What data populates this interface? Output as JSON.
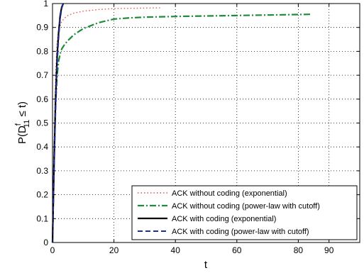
{
  "chart_data": {
    "type": "line",
    "xlabel": "t",
    "ylabel_main": "P(D",
    "ylabel_sup": "f",
    "ylabel_sub": "11",
    "ylabel_tail": " ≤ t)",
    "xlim": [
      0,
      100
    ],
    "ylim": [
      0,
      1
    ],
    "xticks": [
      0,
      20,
      40,
      60,
      80,
      90
    ],
    "yticks": [
      0,
      0.1,
      0.2,
      0.3,
      0.4,
      0.5,
      0.6,
      0.7,
      0.8,
      0.9,
      1
    ],
    "grid": true,
    "legend_position": "bottom-right",
    "series": [
      {
        "name": "ACK without coding (exponential)",
        "color": "#e0554a",
        "style": "dotted",
        "x": [
          0,
          0.5,
          1,
          1.5,
          2,
          3,
          4,
          5,
          7,
          10,
          15,
          20,
          25,
          30,
          35
        ],
        "y": [
          0,
          0.4,
          0.7,
          0.84,
          0.89,
          0.925,
          0.94,
          0.95,
          0.96,
          0.968,
          0.975,
          0.979,
          0.98,
          0.981,
          0.982
        ]
      },
      {
        "name": "ACK without coding (power-law with cutoff)",
        "color": "#1e8c3a",
        "style": "dashdot",
        "x": [
          0,
          0.5,
          1,
          1.5,
          2,
          2.5,
          3,
          4,
          5,
          7,
          10,
          15,
          20,
          25,
          30,
          40,
          50,
          60,
          70,
          80,
          84
        ],
        "y": [
          0,
          0.35,
          0.58,
          0.7,
          0.76,
          0.79,
          0.81,
          0.83,
          0.845,
          0.87,
          0.895,
          0.92,
          0.935,
          0.94,
          0.943,
          0.946,
          0.948,
          0.95,
          0.952,
          0.954,
          0.955
        ]
      },
      {
        "name": "ACK with coding (exponential)",
        "color": "#000000",
        "style": "solid",
        "x": [
          0,
          0.5,
          1,
          1.5,
          2,
          2.5,
          3,
          3.5
        ],
        "y": [
          0,
          0.33,
          0.6,
          0.78,
          0.88,
          0.95,
          0.985,
          1.0
        ]
      },
      {
        "name": "ACK with coding (power-law with cutoff)",
        "color": "#1f2f99",
        "style": "dashed",
        "x": [
          0,
          0.5,
          1,
          1.5,
          2,
          2.5,
          3,
          3.5
        ],
        "y": [
          0,
          0.3,
          0.56,
          0.75,
          0.86,
          0.94,
          0.98,
          1.0
        ]
      }
    ]
  }
}
